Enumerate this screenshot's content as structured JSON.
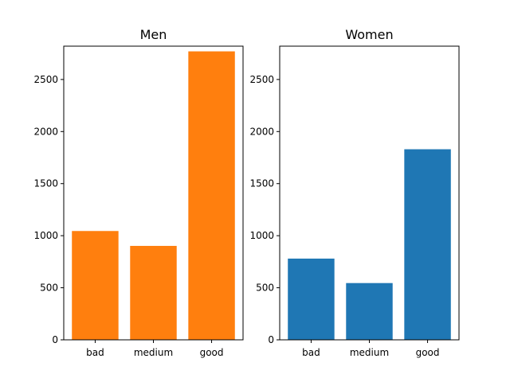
{
  "colors": {
    "background": "#ffffff",
    "axis": "#000000"
  },
  "chart_data": [
    {
      "type": "bar",
      "title": "Men",
      "xlabel": "",
      "ylabel": "",
      "categories": [
        "bad",
        "medium",
        "good"
      ],
      "values": [
        1045,
        902,
        2770
      ],
      "ylim": [
        0,
        2820
      ],
      "yticks": [
        0,
        500,
        1000,
        1500,
        2000,
        2500
      ],
      "color": "#ff7f0e",
      "grid": false
    },
    {
      "type": "bar",
      "title": "Women",
      "xlabel": "",
      "ylabel": "",
      "categories": [
        "bad",
        "medium",
        "good"
      ],
      "values": [
        780,
        545,
        1830
      ],
      "ylim": [
        0,
        2820
      ],
      "yticks": [
        0,
        500,
        1000,
        1500,
        2000,
        2500
      ],
      "color": "#1f77b4",
      "grid": false
    }
  ]
}
